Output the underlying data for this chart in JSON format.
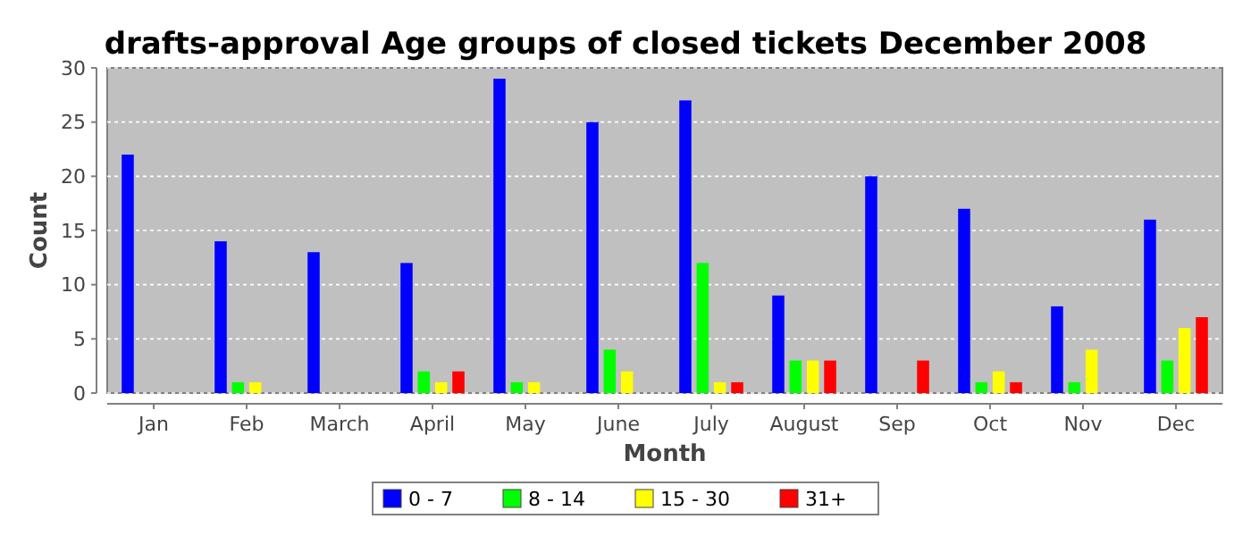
{
  "chart_data": {
    "type": "bar",
    "title": "drafts-approval Age groups of closed tickets December 2008",
    "xlabel": "Month",
    "ylabel": "Count",
    "categories": [
      "Jan",
      "Feb",
      "March",
      "April",
      "May",
      "June",
      "July",
      "August",
      "Sep",
      "Oct",
      "Nov",
      "Dec"
    ],
    "series": [
      {
        "name": "0 - 7",
        "color": "#0000ff",
        "values": [
          22,
          14,
          13,
          12,
          29,
          25,
          27,
          9,
          20,
          17,
          8,
          16
        ]
      },
      {
        "name": "8 - 14",
        "color": "#00ff00",
        "values": [
          0,
          1,
          0,
          2,
          1,
          4,
          12,
          3,
          0,
          1,
          1,
          3
        ]
      },
      {
        "name": "15 - 30",
        "color": "#ffff00",
        "values": [
          0,
          1,
          0,
          1,
          1,
          2,
          1,
          3,
          0,
          2,
          4,
          6
        ]
      },
      {
        "name": "31+",
        "color": "#ff0000",
        "values": [
          0,
          0,
          0,
          2,
          0,
          0,
          1,
          3,
          3,
          1,
          0,
          7
        ]
      }
    ],
    "ylim": [
      0,
      30
    ],
    "yticks": [
      0,
      5,
      10,
      15,
      20,
      25,
      30
    ],
    "grid": "y",
    "legend": "bottom"
  }
}
